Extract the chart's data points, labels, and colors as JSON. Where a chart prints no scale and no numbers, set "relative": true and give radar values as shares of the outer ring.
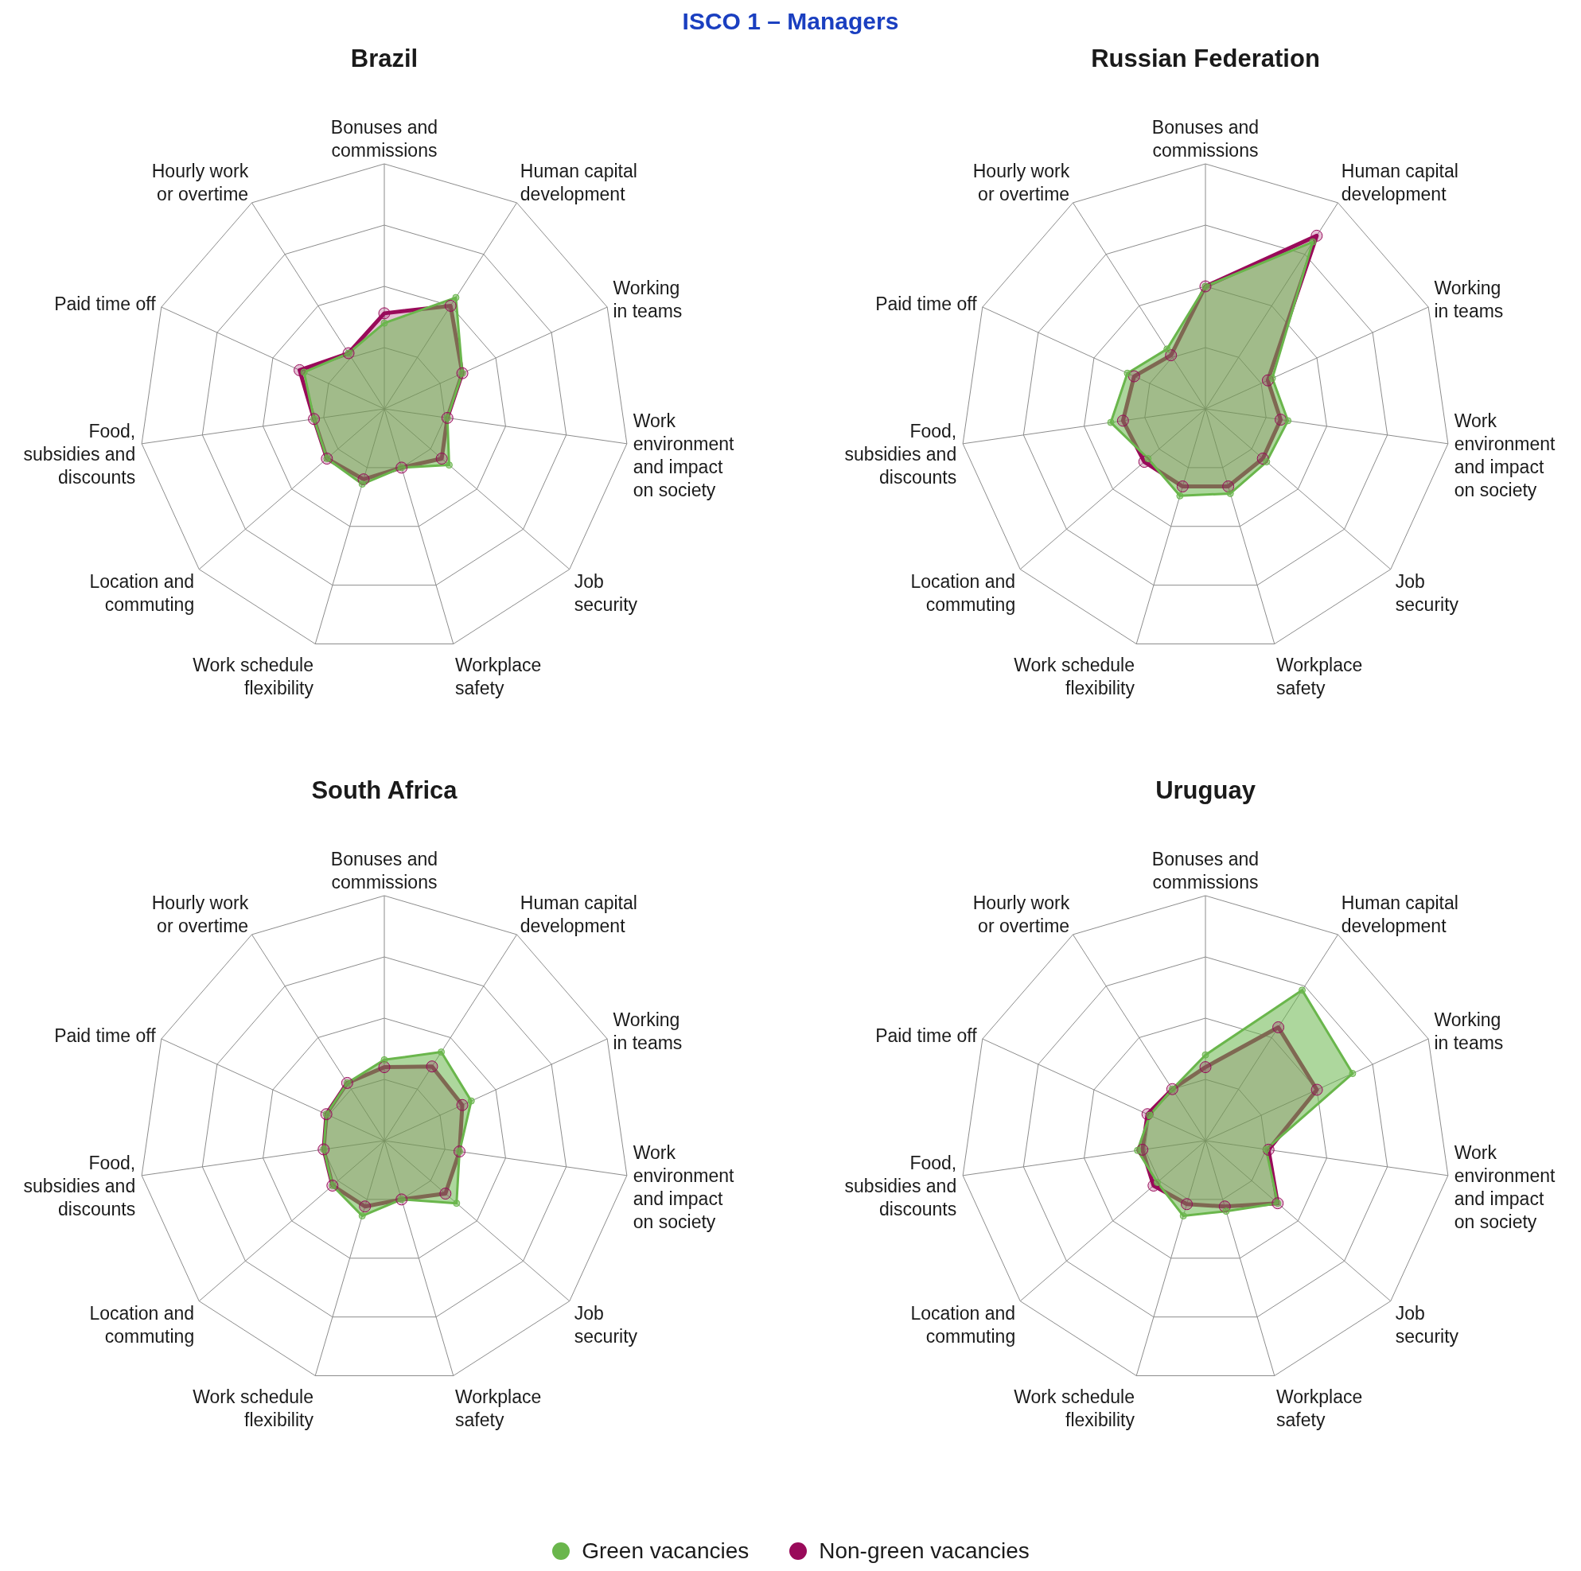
{
  "chart_data": [
    {
      "type": "radar",
      "title": "Brazil",
      "annotations": [
        "ISCO 1 – Managers"
      ],
      "relative": true,
      "marker": "circle",
      "line_style": "solid",
      "grid": true,
      "categories": [
        "Bonuses and\ncommissions",
        "Human capital\ndevelopment",
        "Working\nin teams",
        "Work\nenvironment\nand impact\non society",
        "Job\nsecurity",
        "Workplace\nsafety",
        "Work schedule\nflexibility",
        "Location and\ncommuting",
        "Food,\nsubsidies and\ndiscounts",
        "Paid time off",
        "Hourly work\nor overtime"
      ],
      "series": [
        {
          "color": "#6ab64c",
          "values": [
            0.35,
            0.54,
            0.35,
            0.26,
            0.35,
            0.25,
            0.32,
            0.31,
            0.29,
            0.36,
            0.27
          ]
        },
        {
          "color": "#990a5a",
          "values": [
            0.39,
            0.5,
            0.35,
            0.26,
            0.31,
            0.25,
            0.3,
            0.31,
            0.29,
            0.38,
            0.27
          ]
        }
      ]
    },
    {
      "type": "radar",
      "title": "Russian Federation",
      "relative": true,
      "marker": "circle",
      "line_style": "solid",
      "grid": true,
      "categories": [
        "Bonuses and\ncommissions",
        "Human capital\ndevelopment",
        "Working\nin teams",
        "Work\nenvironment\nand impact\non society",
        "Job\nsecurity",
        "Workplace\nsafety",
        "Work schedule\nflexibility",
        "Location and\ncommuting",
        "Food,\nsubsidies and\ndiscounts",
        "Paid time off",
        "Hourly work\nor overtime"
      ],
      "series": [
        {
          "color": "#6ab64c",
          "values": [
            0.5,
            0.81,
            0.3,
            0.34,
            0.33,
            0.36,
            0.37,
            0.31,
            0.39,
            0.35,
            0.29
          ]
        },
        {
          "color": "#990a5a",
          "values": [
            0.5,
            0.84,
            0.28,
            0.31,
            0.31,
            0.33,
            0.33,
            0.33,
            0.34,
            0.32,
            0.26
          ]
        }
      ]
    },
    {
      "type": "radar",
      "title": "South Africa",
      "relative": true,
      "marker": "circle",
      "line_style": "solid",
      "grid": true,
      "categories": [
        "Bonuses and\ncommissions",
        "Human capital\ndevelopment",
        "Working\nin teams",
        "Work\nenvironment\nand impact\non society",
        "Job\nsecurity",
        "Workplace\nsafety",
        "Work schedule\nflexibility",
        "Location and\ncommuting",
        "Food,\nsubsidies and\ndiscounts",
        "Paid time off",
        "Hourly work\nor overtime"
      ],
      "series": [
        {
          "color": "#6ab64c",
          "values": [
            0.33,
            0.43,
            0.39,
            0.31,
            0.39,
            0.25,
            0.32,
            0.28,
            0.25,
            0.26,
            0.28
          ]
        },
        {
          "color": "#990a5a",
          "values": [
            0.3,
            0.36,
            0.35,
            0.31,
            0.33,
            0.25,
            0.28,
            0.28,
            0.25,
            0.26,
            0.28
          ]
        }
      ]
    },
    {
      "type": "radar",
      "title": "Uruguay",
      "relative": true,
      "marker": "circle",
      "line_style": "solid",
      "grid": true,
      "legend": "bottom",
      "categories": [
        "Bonuses and\ncommissions",
        "Human capital\ndevelopment",
        "Working\nin teams",
        "Work\nenvironment\nand impact\non society",
        "Job\nsecurity",
        "Workplace\nsafety",
        "Work schedule\nflexibility",
        "Location and\ncommuting",
        "Food,\nsubsidies and\ndiscounts",
        "Paid time off",
        "Hourly work\nor overtime"
      ],
      "series": [
        {
          "name": "Green vacancies",
          "color": "#6ab64c",
          "values": [
            0.35,
            0.73,
            0.66,
            0.25,
            0.39,
            0.3,
            0.32,
            0.26,
            0.28,
            0.25,
            0.25
          ]
        },
        {
          "name": "Non-green vacancies",
          "color": "#990a5a",
          "values": [
            0.3,
            0.55,
            0.5,
            0.26,
            0.39,
            0.28,
            0.27,
            0.28,
            0.26,
            0.26,
            0.25
          ]
        }
      ]
    }
  ]
}
